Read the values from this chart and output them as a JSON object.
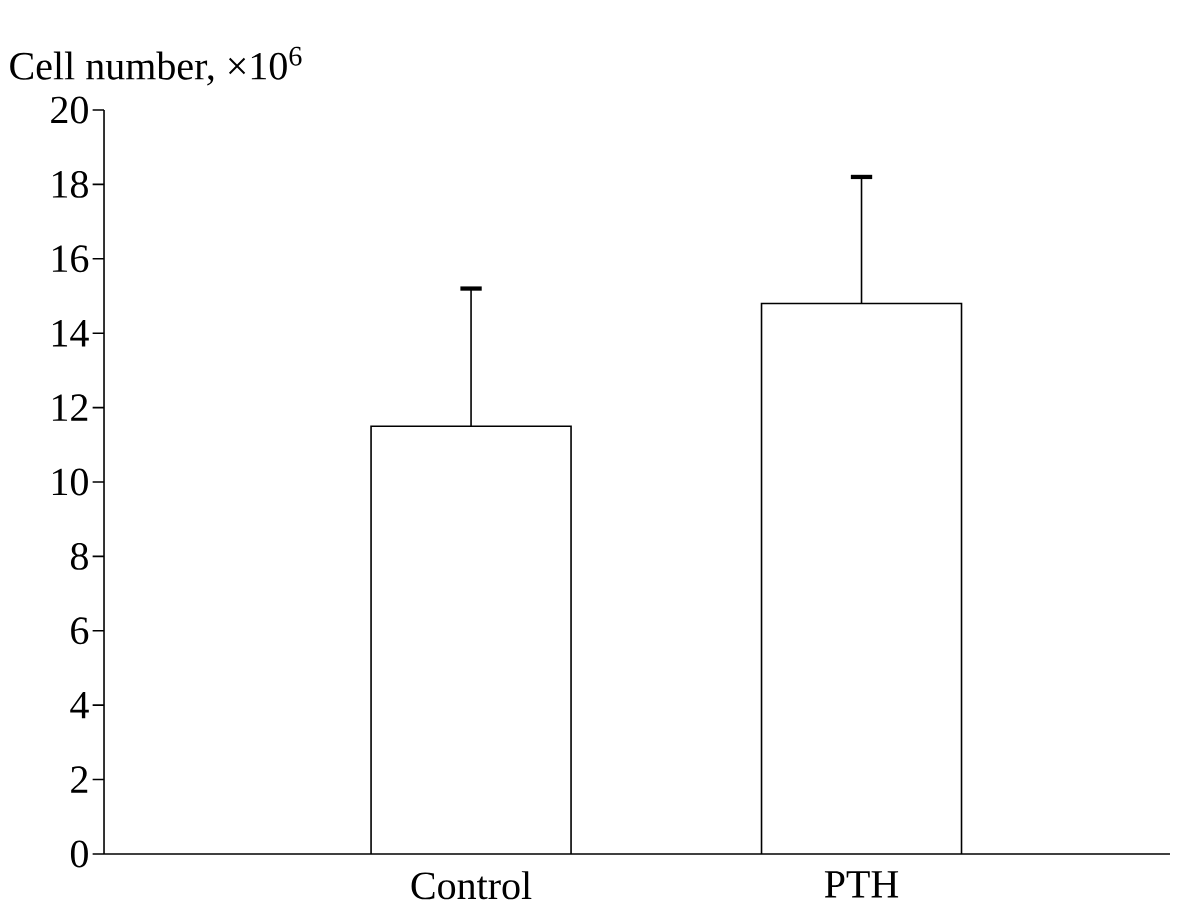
{
  "chart_data": {
    "type": "bar",
    "ylabel": "Cell number, ×10$^{6}$",
    "categories": [
      "Control",
      "PTH"
    ],
    "values": [
      11.5,
      14.8
    ],
    "errors": [
      [
        11.5,
        15.2
      ],
      [
        14.8,
        18.2
      ]
    ],
    "color": "#ffffff",
    "ylim": [
      0,
      20
    ],
    "yticks": [
      0,
      2,
      4,
      6,
      8,
      10,
      12,
      14,
      16,
      18,
      20
    ],
    "grid": false
  }
}
